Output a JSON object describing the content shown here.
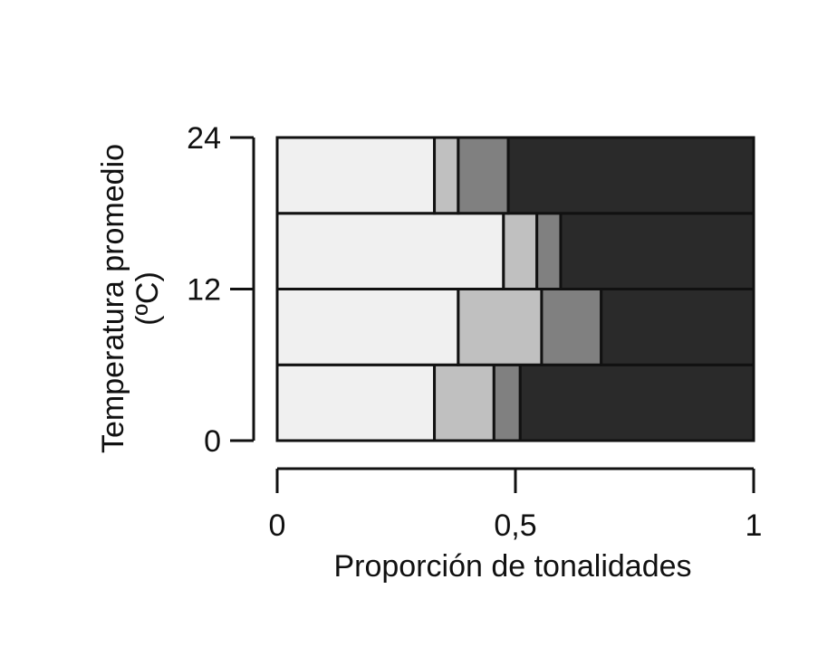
{
  "chart_data": {
    "type": "bar",
    "orientation": "horizontal",
    "stacked": true,
    "xlabel": "Proporción de tonalidades",
    "ylabel_lines": [
      "Temperatura promedio",
      "(ºC)"
    ],
    "xlim": [
      0,
      1
    ],
    "ylim": [
      0,
      24
    ],
    "x_ticks": [
      {
        "value": 0,
        "label": "0"
      },
      {
        "value": 0.5,
        "label": "0,5"
      },
      {
        "value": 1,
        "label": "1"
      }
    ],
    "y_ticks": [
      {
        "value": 0,
        "label": "0"
      },
      {
        "value": 12,
        "label": "12"
      },
      {
        "value": 24,
        "label": "24"
      }
    ],
    "bar_bands": [
      [
        0,
        6
      ],
      [
        6,
        12
      ],
      [
        12,
        18
      ],
      [
        18,
        24
      ]
    ],
    "series": [
      {
        "color": "#f0f0f0",
        "values": [
          0.33,
          0.38,
          0.475,
          0.33
        ]
      },
      {
        "color": "#c0c0c0",
        "values": [
          0.125,
          0.175,
          0.07,
          0.05
        ]
      },
      {
        "color": "#808080",
        "values": [
          0.055,
          0.125,
          0.05,
          0.105
        ]
      },
      {
        "color": "#2a2a2a",
        "values": [
          0.49,
          0.32,
          0.405,
          0.515
        ]
      }
    ],
    "grid": false,
    "legend": "none"
  }
}
